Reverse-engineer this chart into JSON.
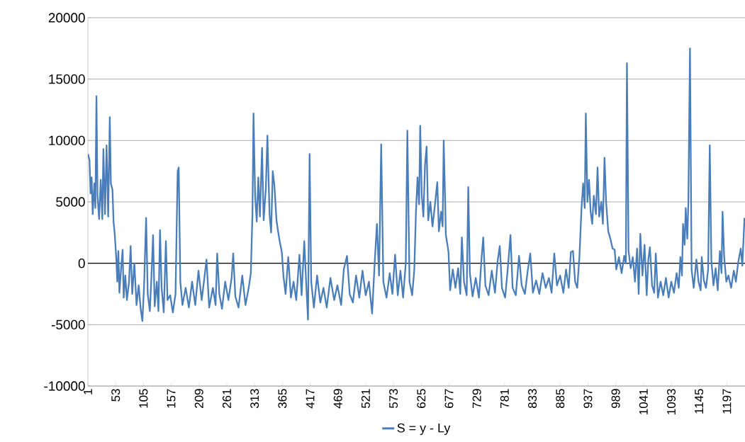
{
  "chart_data": {
    "type": "line",
    "grid": "y",
    "legend": "bottom",
    "xlim": [
      1,
      1231
    ],
    "ylim": [
      -10000,
      20000
    ],
    "xticks": [
      1,
      53,
      105,
      157,
      209,
      261,
      313,
      365,
      417,
      469,
      521,
      573,
      625,
      677,
      729,
      781,
      833,
      885,
      937,
      989,
      1041,
      1093,
      1145,
      1197
    ],
    "yticks": [
      -10000,
      -5000,
      0,
      5000,
      10000,
      15000,
      20000
    ],
    "series": [
      {
        "name": "S = y - Ly",
        "color": "#4a7ebb",
        "x": [
          1,
          4,
          6,
          8,
          10,
          13,
          15,
          17,
          19,
          22,
          25,
          28,
          30,
          33,
          36,
          39,
          42,
          44,
          47,
          49,
          51,
          54,
          56,
          58,
          60,
          63,
          66,
          68,
          71,
          74,
          78,
          81,
          84,
          88,
          92,
          96,
          100,
          103,
          106,
          110,
          113,
          117,
          120,
          123,
          126,
          130,
          133,
          136,
          139,
          143,
          147,
          150,
          155,
          160,
          165,
          169,
          171,
          174,
          178,
          184,
          190,
          196,
          202,
          208,
          214,
          219,
          223,
          228,
          235,
          240,
          243,
          247,
          252,
          258,
          264,
          270,
          273,
          277,
          283,
          290,
          296,
          302,
          306,
          309,
          311,
          314,
          317,
          320,
          323,
          327,
          330,
          334,
          337,
          341,
          344,
          347,
          350,
          354,
          357,
          360,
          364,
          367,
          371,
          376,
          381,
          386,
          391,
          397,
          401,
          406,
          410,
          413,
          416,
          419,
          424,
          430,
          436,
          442,
          448,
          455,
          462,
          468,
          475,
          480,
          486,
          491,
          497,
          503,
          509,
          515,
          521,
          527,
          533,
          538,
          542,
          546,
          550,
          554,
          560,
          566,
          571,
          576,
          581,
          586,
          591,
          596,
          599,
          603,
          608,
          612,
          615,
          618,
          621,
          623,
          626,
          629,
          632,
          635,
          638,
          642,
          646,
          650,
          655,
          658,
          662,
          665,
          667,
          670,
          671,
          674,
          676,
          679,
          684,
          689,
          694,
          698,
          701,
          705,
          710,
          713,
          716,
          721,
          727,
          733,
          738,
          741,
          745,
          751,
          757,
          763,
          768,
          772,
          776,
          782,
          787,
          792,
          796,
          802,
          808,
          813,
          819,
          824,
          829,
          834,
          840,
          846,
          852,
          858,
          864,
          869,
          874,
          879,
          885,
          891,
          896,
          901,
          905,
          909,
          913,
          917,
          921,
          925,
          928,
          931,
          933,
          936,
          939,
          942,
          945,
          948,
          952,
          955,
          958,
          962,
          965,
          968,
          971,
          975,
          979,
          983,
          987,
          990,
          995,
          1000,
          1005,
          1008,
          1010,
          1013,
          1017,
          1021,
          1025,
          1029,
          1032,
          1035,
          1039,
          1043,
          1047,
          1050,
          1053,
          1057,
          1061,
          1064,
          1068,
          1073,
          1078,
          1083,
          1088,
          1093,
          1098,
          1103,
          1107,
          1110,
          1113,
          1115,
          1118,
          1120,
          1123,
          1125,
          1128,
          1131,
          1135,
          1140,
          1144,
          1148,
          1150,
          1154,
          1158,
          1162,
          1165,
          1168,
          1172,
          1176,
          1180,
          1184,
          1187,
          1189,
          1192,
          1196,
          1200,
          1205,
          1210,
          1214,
          1218,
          1223,
          1226,
          1230
        ],
        "values": [
          8900,
          8400,
          5700,
          7000,
          4000,
          6500,
          4500,
          13600,
          5500,
          3600,
          6800,
          3600,
          9300,
          4000,
          9600,
          3800,
          11900,
          6500,
          6000,
          3400,
          2500,
          500,
          -1500,
          1000,
          -2400,
          -500,
          1100,
          -2800,
          -1000,
          -3000,
          -1500,
          1400,
          -2500,
          0,
          -3400,
          -1800,
          -3800,
          -4700,
          -2000,
          3700,
          -2500,
          -3900,
          -1000,
          2300,
          -3500,
          -1500,
          -3900,
          2700,
          -2000,
          -4000,
          1800,
          -3000,
          -2600,
          -4000,
          -2500,
          7500,
          7800,
          -1500,
          -3400,
          -2000,
          -3600,
          -1500,
          -3400,
          -600,
          -3000,
          -1200,
          300,
          -3600,
          -2000,
          -3400,
          800,
          -2500,
          -3700,
          -1500,
          -3000,
          -1200,
          800,
          -2700,
          -3600,
          -1000,
          -3400,
          -2000,
          -800,
          4000,
          12200,
          5500,
          3400,
          7000,
          3800,
          9400,
          3500,
          6000,
          10400,
          4000,
          2500,
          7500,
          6400,
          3500,
          2600,
          1800,
          900,
          -1000,
          -2500,
          500,
          -2800,
          -1500,
          -3000,
          700,
          -2600,
          1800,
          -2000,
          -4600,
          8900,
          -1500,
          -3600,
          -1000,
          -3200,
          -2000,
          -3600,
          -1200,
          -3000,
          -1800,
          -3400,
          -500,
          600,
          -2500,
          -3200,
          -1000,
          -2800,
          -600,
          -2600,
          -1500,
          -4100,
          200,
          3200,
          -1000,
          9700,
          -1500,
          -2800,
          -800,
          -2500,
          700,
          -2600,
          -600,
          -2800,
          0,
          10800,
          -1500,
          -2600,
          -500,
          4100,
          7000,
          4800,
          11200,
          5500,
          3800,
          8000,
          9500,
          3500,
          5000,
          3000,
          4500,
          6600,
          2600,
          4200,
          3000,
          10000,
          4500,
          2300,
          1500,
          900,
          -2200,
          -500,
          -2000,
          -400,
          -2500,
          2100,
          -1500,
          -2600,
          6200,
          -800,
          -2700,
          -1200,
          -2800,
          500,
          2100,
          -1800,
          -2600,
          -600,
          -2400,
          200,
          1400,
          -2000,
          -2800,
          -400,
          2300,
          -2000,
          -2600,
          600,
          -1800,
          -2500,
          -700,
          800,
          -2400,
          -1400,
          -2500,
          -800,
          -2000,
          -1200,
          -2400,
          800,
          -1800,
          -1000,
          -2400,
          -500,
          -2000,
          900,
          1000,
          -1500,
          -2000,
          500,
          4500,
          6500,
          4500,
          12200,
          5000,
          6800,
          4200,
          3200,
          5500,
          4000,
          7800,
          3800,
          5000,
          3200,
          8600,
          5000,
          2600,
          2000,
          1200,
          1100,
          -500,
          500,
          -800,
          600,
          0,
          16300,
          1000,
          -400,
          500,
          -1500,
          1200,
          -2500,
          2400,
          -1000,
          1500,
          -2600,
          300,
          1300,
          -1800,
          -2400,
          800,
          -2800,
          -1500,
          -2600,
          -1200,
          -2800,
          -1500,
          -2400,
          -800,
          -2000,
          500,
          -1000,
          3200,
          1500,
          4500,
          2000,
          5000,
          17500,
          -500,
          -2000,
          300,
          -1500,
          -2200,
          500,
          -1400,
          -2000,
          -500,
          9600,
          200,
          -1800,
          -400,
          -2200,
          1000,
          -800,
          4200,
          500,
          -1500,
          -1000,
          -2000,
          -600,
          -1500,
          0,
          1200,
          -200,
          3700
        ]
      }
    ]
  }
}
